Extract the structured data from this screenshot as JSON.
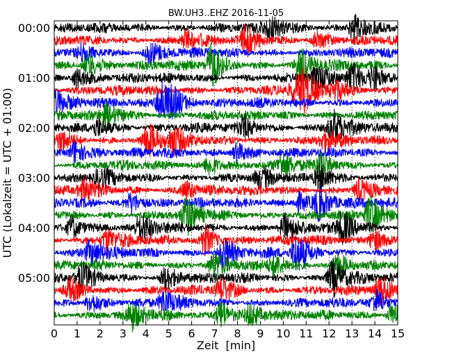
{
  "chart_data": {
    "type": "line",
    "title": "BW.UH3..EHZ 2016-11-05",
    "xlabel": "Zeit  [min]",
    "ylabel": "UTC (Lokalzeit = UTC + 01:00)",
    "xlim": [
      0,
      15
    ],
    "x_ticks": [
      "0",
      "1",
      "2",
      "3",
      "4",
      "5",
      "6",
      "7",
      "8",
      "9",
      "10",
      "11",
      "12",
      "13",
      "14",
      "15"
    ],
    "y_ticks": [
      "00:00",
      "01:00",
      "02:00",
      "03:00",
      "04:00",
      "05:00"
    ],
    "grid": "vertical dotted lines at each minute",
    "trace_minutes": 15,
    "traces_per_hour": 4,
    "color_cycle": [
      "#000000",
      "#ff0000",
      "#0000ff",
      "#008000"
    ],
    "series": [
      {
        "start": "00:00",
        "color": "#000000",
        "events": [
          {
            "t": 9.5,
            "a": 1.6
          },
          {
            "t": 13.1,
            "a": 2.0
          }
        ]
      },
      {
        "start": "00:15",
        "color": "#ff0000",
        "events": [
          {
            "t": 5.8,
            "a": 1.3
          },
          {
            "t": 8.4,
            "a": 1.8
          },
          {
            "t": 11.5,
            "a": 1.2
          }
        ]
      },
      {
        "start": "00:30",
        "color": "#0000ff",
        "events": [
          {
            "t": 1.3,
            "a": 1.2
          },
          {
            "t": 4.2,
            "a": 1.5
          }
        ]
      },
      {
        "start": "00:45",
        "color": "#008000",
        "events": [
          {
            "t": 1.5,
            "a": 1.6
          },
          {
            "t": 6.9,
            "a": 2.8
          },
          {
            "t": 10.8,
            "a": 2.0
          }
        ]
      },
      {
        "start": "01:00",
        "color": "#000000",
        "events": [
          {
            "t": 1.0,
            "a": 1.3
          },
          {
            "t": 11.5,
            "a": 1.6
          },
          {
            "t": 13.0,
            "a": 1.8
          },
          {
            "t": 14.0,
            "a": 1.5
          }
        ]
      },
      {
        "start": "01:15",
        "color": "#ff0000",
        "events": [
          {
            "t": 10.5,
            "a": 1.4
          },
          {
            "t": 10.9,
            "a": 2.3
          },
          {
            "t": 12.3,
            "a": 1.3
          }
        ]
      },
      {
        "start": "01:30",
        "color": "#0000ff",
        "events": [
          {
            "t": 0.1,
            "a": 1.5
          },
          {
            "t": 4.7,
            "a": 3.0
          },
          {
            "t": 5.2,
            "a": 1.2
          }
        ]
      },
      {
        "start": "01:45",
        "color": "#008000",
        "events": [
          {
            "t": 2.3,
            "a": 1.6
          }
        ]
      },
      {
        "start": "02:00",
        "color": "#000000",
        "events": [
          {
            "t": 1.9,
            "a": 1.2
          },
          {
            "t": 8.3,
            "a": 1.4
          },
          {
            "t": 12.2,
            "a": 2.3
          }
        ]
      },
      {
        "start": "02:15",
        "color": "#ff0000",
        "events": [
          {
            "t": 0.3,
            "a": 1.2
          },
          {
            "t": 4.1,
            "a": 2.0
          },
          {
            "t": 5.2,
            "a": 1.6
          },
          {
            "t": 11.8,
            "a": 1.2
          }
        ]
      },
      {
        "start": "02:30",
        "color": "#0000ff",
        "events": [
          {
            "t": 0.9,
            "a": 1.7
          },
          {
            "t": 8.0,
            "a": 1.3
          }
        ]
      },
      {
        "start": "02:45",
        "color": "#008000",
        "events": [
          {
            "t": 6.8,
            "a": 1.3
          },
          {
            "t": 10.0,
            "a": 1.4
          },
          {
            "t": 11.7,
            "a": 1.2
          }
        ]
      },
      {
        "start": "03:00",
        "color": "#000000",
        "events": [
          {
            "t": 2.0,
            "a": 1.2
          },
          {
            "t": 9.0,
            "a": 1.1
          },
          {
            "t": 11.6,
            "a": 1.9
          }
        ]
      },
      {
        "start": "03:15",
        "color": "#ff0000",
        "events": [
          {
            "t": 1.3,
            "a": 1.3
          },
          {
            "t": 5.8,
            "a": 1.2
          },
          {
            "t": 13.3,
            "a": 1.3
          }
        ]
      },
      {
        "start": "03:30",
        "color": "#0000ff",
        "events": [
          {
            "t": 3.4,
            "a": 1.4
          },
          {
            "t": 10.7,
            "a": 1.4
          },
          {
            "t": 11.6,
            "a": 2.0
          }
        ]
      },
      {
        "start": "03:45",
        "color": "#008000",
        "events": [
          {
            "t": 5.8,
            "a": 2.3
          },
          {
            "t": 13.8,
            "a": 2.2
          }
        ]
      },
      {
        "start": "04:00",
        "color": "#000000",
        "events": [
          {
            "t": 0.8,
            "a": 1.5
          },
          {
            "t": 3.8,
            "a": 1.8
          },
          {
            "t": 10.1,
            "a": 1.7
          },
          {
            "t": 12.6,
            "a": 2.0
          }
        ]
      },
      {
        "start": "04:15",
        "color": "#ff0000",
        "events": [
          {
            "t": 2.3,
            "a": 1.5
          },
          {
            "t": 6.6,
            "a": 1.8
          },
          {
            "t": 14.0,
            "a": 1.6
          }
        ]
      },
      {
        "start": "04:30",
        "color": "#0000ff",
        "events": [
          {
            "t": 1.6,
            "a": 1.6
          },
          {
            "t": 7.4,
            "a": 2.0
          },
          {
            "t": 10.6,
            "a": 2.2
          }
        ]
      },
      {
        "start": "04:45",
        "color": "#008000",
        "events": [
          {
            "t": 7.0,
            "a": 1.5
          },
          {
            "t": 9.6,
            "a": 1.4
          },
          {
            "t": 12.4,
            "a": 1.6
          }
        ]
      },
      {
        "start": "05:00",
        "color": "#000000",
        "events": [
          {
            "t": 1.2,
            "a": 1.8
          },
          {
            "t": 4.9,
            "a": 1.5
          },
          {
            "t": 12.2,
            "a": 2.4
          }
        ]
      },
      {
        "start": "05:15",
        "color": "#ff0000",
        "events": [
          {
            "t": 0.7,
            "a": 1.3
          },
          {
            "t": 7.3,
            "a": 1.4
          },
          {
            "t": 14.3,
            "a": 1.7
          }
        ]
      },
      {
        "start": "05:30",
        "color": "#0000ff",
        "events": [
          {
            "t": 1.6,
            "a": 1.3
          },
          {
            "t": 4.8,
            "a": 1.5
          },
          {
            "t": 14.1,
            "a": 1.3
          }
        ]
      },
      {
        "start": "05:45",
        "color": "#008000",
        "events": [
          {
            "t": 3.4,
            "a": 1.6
          },
          {
            "t": 7.3,
            "a": 1.9
          },
          {
            "t": 8.6,
            "a": 1.4
          },
          {
            "t": 14.8,
            "a": 1.6
          }
        ]
      }
    ]
  }
}
